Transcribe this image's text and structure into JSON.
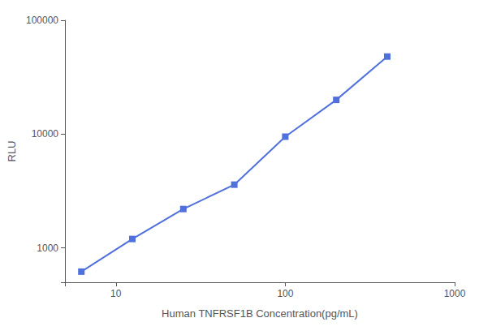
{
  "chart_data": {
    "type": "line",
    "x": [
      6.25,
      12.5,
      25,
      50,
      100,
      200,
      400
    ],
    "values": [
      620,
      1200,
      2200,
      3600,
      9500,
      20000,
      48000
    ],
    "xlabel": "Human TNFRSF1B Concentration(pg/mL)",
    "ylabel": "RLU",
    "log": true,
    "xlim": [
      5,
      1000
    ],
    "ylim": [
      500,
      100000
    ],
    "xticks": [
      10,
      100,
      1000
    ],
    "yticks": [
      1000,
      10000,
      100000
    ],
    "grid": false,
    "marker": "square"
  }
}
